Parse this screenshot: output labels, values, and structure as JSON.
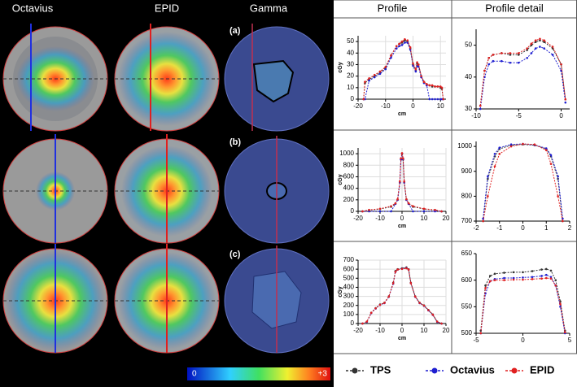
{
  "columns": [
    "Octavius",
    "EPID",
    "Gamma",
    "Profile",
    "Profile detail"
  ],
  "panel_labels": [
    "(a)",
    "(b)",
    "(c)"
  ],
  "colorbar": {
    "min_label": "0",
    "max_label": "+3"
  },
  "legend": [
    {
      "name": "TPS",
      "color": "#333333"
    },
    {
      "name": "Octavius",
      "color": "#1f1fd0"
    },
    {
      "name": "EPID",
      "color": "#e02020"
    }
  ],
  "chart_data": [
    {
      "type": "line",
      "xlabel": "cm",
      "ylabel": "cGy",
      "grid": true,
      "x": [
        -18,
        -17.5,
        -16,
        -14,
        -12,
        -10,
        -8,
        -6,
        -5,
        -4,
        -3,
        -2,
        -1,
        0,
        1,
        1.5,
        2,
        3,
        4,
        5,
        6,
        7,
        8,
        9,
        10,
        10.5,
        11
      ],
      "xlim": [
        -20,
        12
      ],
      "xticks": [
        -20,
        -10,
        0,
        10
      ],
      "ylim": [
        0,
        55
      ],
      "yticks": [
        0,
        10,
        20,
        30,
        40,
        50
      ],
      "series": [
        {
          "color": "#333333",
          "values": [
            0,
            14,
            17,
            20,
            23,
            27,
            38,
            46,
            48,
            49,
            51,
            50,
            44,
            30,
            25,
            31,
            30,
            20,
            15,
            13,
            12,
            11,
            11,
            11,
            10,
            9,
            0
          ]
        },
        {
          "color": "#1f1fd0",
          "values": [
            0,
            0,
            16,
            19,
            22,
            26,
            36,
            44,
            46,
            47,
            49,
            49,
            43,
            29,
            24,
            29,
            28,
            19,
            14,
            12,
            0,
            0,
            0,
            0,
            0,
            0,
            0
          ]
        },
        {
          "color": "#e02020",
          "values": [
            0,
            15,
            18,
            21,
            24,
            28,
            38,
            46,
            48,
            50,
            52,
            51,
            45,
            31,
            26,
            32,
            30,
            20,
            15,
            13,
            12,
            12,
            11,
            11,
            11,
            10,
            0
          ]
        }
      ]
    },
    {
      "type": "line",
      "grid": false,
      "x": [
        -9.5,
        -9,
        -8.5,
        -8,
        -7,
        -6,
        -5,
        -4,
        -3.5,
        -3,
        -2.5,
        -2,
        -1,
        0,
        0.5
      ],
      "xlim": [
        -10,
        1
      ],
      "xticks": [
        -10,
        -5,
        0
      ],
      "ylim": [
        30,
        55
      ],
      "yticks": [
        30,
        40,
        50
      ],
      "series": [
        {
          "color": "#333333",
          "values": [
            31,
            42,
            46,
            47,
            47.5,
            47,
            47,
            48.5,
            50,
            51,
            51.5,
            51,
            49,
            44,
            33
          ]
        },
        {
          "color": "#1f1fd0",
          "values": [
            30,
            40,
            44,
            45,
            45,
            44.5,
            44.5,
            46,
            47.5,
            49,
            49.5,
            49,
            47,
            42,
            32
          ]
        },
        {
          "color": "#e02020",
          "values": [
            31,
            42,
            46,
            47,
            47.5,
            47.5,
            47.5,
            49,
            50.5,
            51.5,
            52,
            51.5,
            49.5,
            44,
            33
          ]
        }
      ]
    },
    {
      "type": "line",
      "xlabel": "cm",
      "ylabel": "cGy",
      "grid": true,
      "x": [
        -18,
        -15,
        -10,
        -5,
        -3,
        -2,
        -1,
        -0.5,
        0,
        0.5,
        1,
        2,
        3,
        5,
        10,
        15,
        18
      ],
      "xlim": [
        -20,
        20
      ],
      "xticks": [
        -20,
        -10,
        0,
        10,
        20
      ],
      "ylim": [
        0,
        1100
      ],
      "yticks": [
        0,
        200,
        400,
        600,
        800,
        1000
      ],
      "series": [
        {
          "color": "#333333",
          "values": [
            0,
            20,
            40,
            80,
            130,
            200,
            500,
            900,
            1000,
            900,
            500,
            200,
            130,
            80,
            40,
            20,
            0
          ]
        },
        {
          "color": "#1f1fd0",
          "values": [
            0,
            0,
            0,
            0,
            130,
            200,
            500,
            900,
            1005,
            900,
            500,
            200,
            130,
            0,
            0,
            0,
            0
          ]
        },
        {
          "color": "#e02020",
          "values": [
            0,
            25,
            45,
            90,
            140,
            210,
            520,
            920,
            1010,
            920,
            520,
            210,
            140,
            90,
            45,
            25,
            0
          ]
        }
      ]
    },
    {
      "type": "line",
      "grid": false,
      "x": [
        -1.7,
        -1.5,
        -1.2,
        -1,
        -0.5,
        0,
        0.5,
        1,
        1.2,
        1.5,
        1.7
      ],
      "xlim": [
        -2,
        2
      ],
      "xticks": [
        -2,
        -1,
        0,
        1,
        2
      ],
      "ylim": [
        700,
        1020
      ],
      "yticks": [
        700,
        800,
        900,
        1000
      ],
      "series": [
        {
          "color": "#333333",
          "values": [
            700,
            870,
            960,
            990,
            1005,
            1008,
            1005,
            990,
            960,
            870,
            700
          ]
        },
        {
          "color": "#1f1fd0",
          "values": [
            710,
            880,
            970,
            995,
            1008,
            1010,
            1006,
            992,
            965,
            880,
            710
          ]
        },
        {
          "color": "#e02020",
          "values": [
            700,
            800,
            920,
            970,
            1000,
            1010,
            1008,
            985,
            930,
            800,
            700
          ]
        }
      ]
    },
    {
      "type": "line",
      "xlabel": "cm",
      "ylabel": "cGy",
      "grid": true,
      "x": [
        -18,
        -16,
        -14,
        -12,
        -10,
        -8,
        -6,
        -4,
        -3,
        -2,
        0,
        2,
        3,
        4,
        6,
        8,
        10,
        12,
        14,
        16,
        18
      ],
      "xlim": [
        -20,
        20
      ],
      "xticks": [
        -20,
        -10,
        0,
        10,
        20
      ],
      "ylim": [
        0,
        700
      ],
      "yticks": [
        0,
        100,
        200,
        300,
        400,
        500,
        600,
        700
      ],
      "series": [
        {
          "color": "#333333",
          "values": [
            0,
            20,
            120,
            170,
            210,
            230,
            300,
            450,
            580,
            600,
            610,
            620,
            600,
            450,
            300,
            230,
            200,
            150,
            100,
            20,
            0
          ]
        },
        {
          "color": "#1f1fd0",
          "values": [
            0,
            18,
            115,
            165,
            205,
            225,
            295,
            440,
            570,
            595,
            605,
            612,
            595,
            445,
            295,
            225,
            195,
            145,
            95,
            18,
            0
          ]
        },
        {
          "color": "#e02020",
          "values": [
            0,
            22,
            118,
            168,
            206,
            228,
            298,
            445,
            572,
            596,
            603,
            610,
            596,
            446,
            298,
            228,
            198,
            148,
            98,
            22,
            0
          ]
        }
      ]
    },
    {
      "type": "line",
      "grid": false,
      "x": [
        -4.5,
        -4,
        -3.5,
        -3,
        -2,
        -1,
        0,
        1,
        2,
        2.5,
        3,
        3.5,
        4,
        4.5
      ],
      "xlim": [
        -5,
        5
      ],
      "xticks": [
        -5,
        0,
        5
      ],
      "ylim": [
        500,
        650
      ],
      "yticks": [
        500,
        550,
        600,
        650
      ],
      "series": [
        {
          "color": "#333333",
          "values": [
            505,
            590,
            608,
            612,
            614,
            615,
            615,
            617,
            620,
            621,
            618,
            600,
            560,
            505
          ]
        },
        {
          "color": "#1f1fd0",
          "values": [
            500,
            575,
            598,
            602,
            604,
            604,
            605,
            606,
            608,
            610,
            606,
            590,
            550,
            500
          ]
        },
        {
          "color": "#e02020",
          "values": [
            500,
            585,
            598,
            600,
            600,
            601,
            601,
            602,
            603,
            604,
            603,
            590,
            555,
            502
          ]
        }
      ]
    }
  ]
}
